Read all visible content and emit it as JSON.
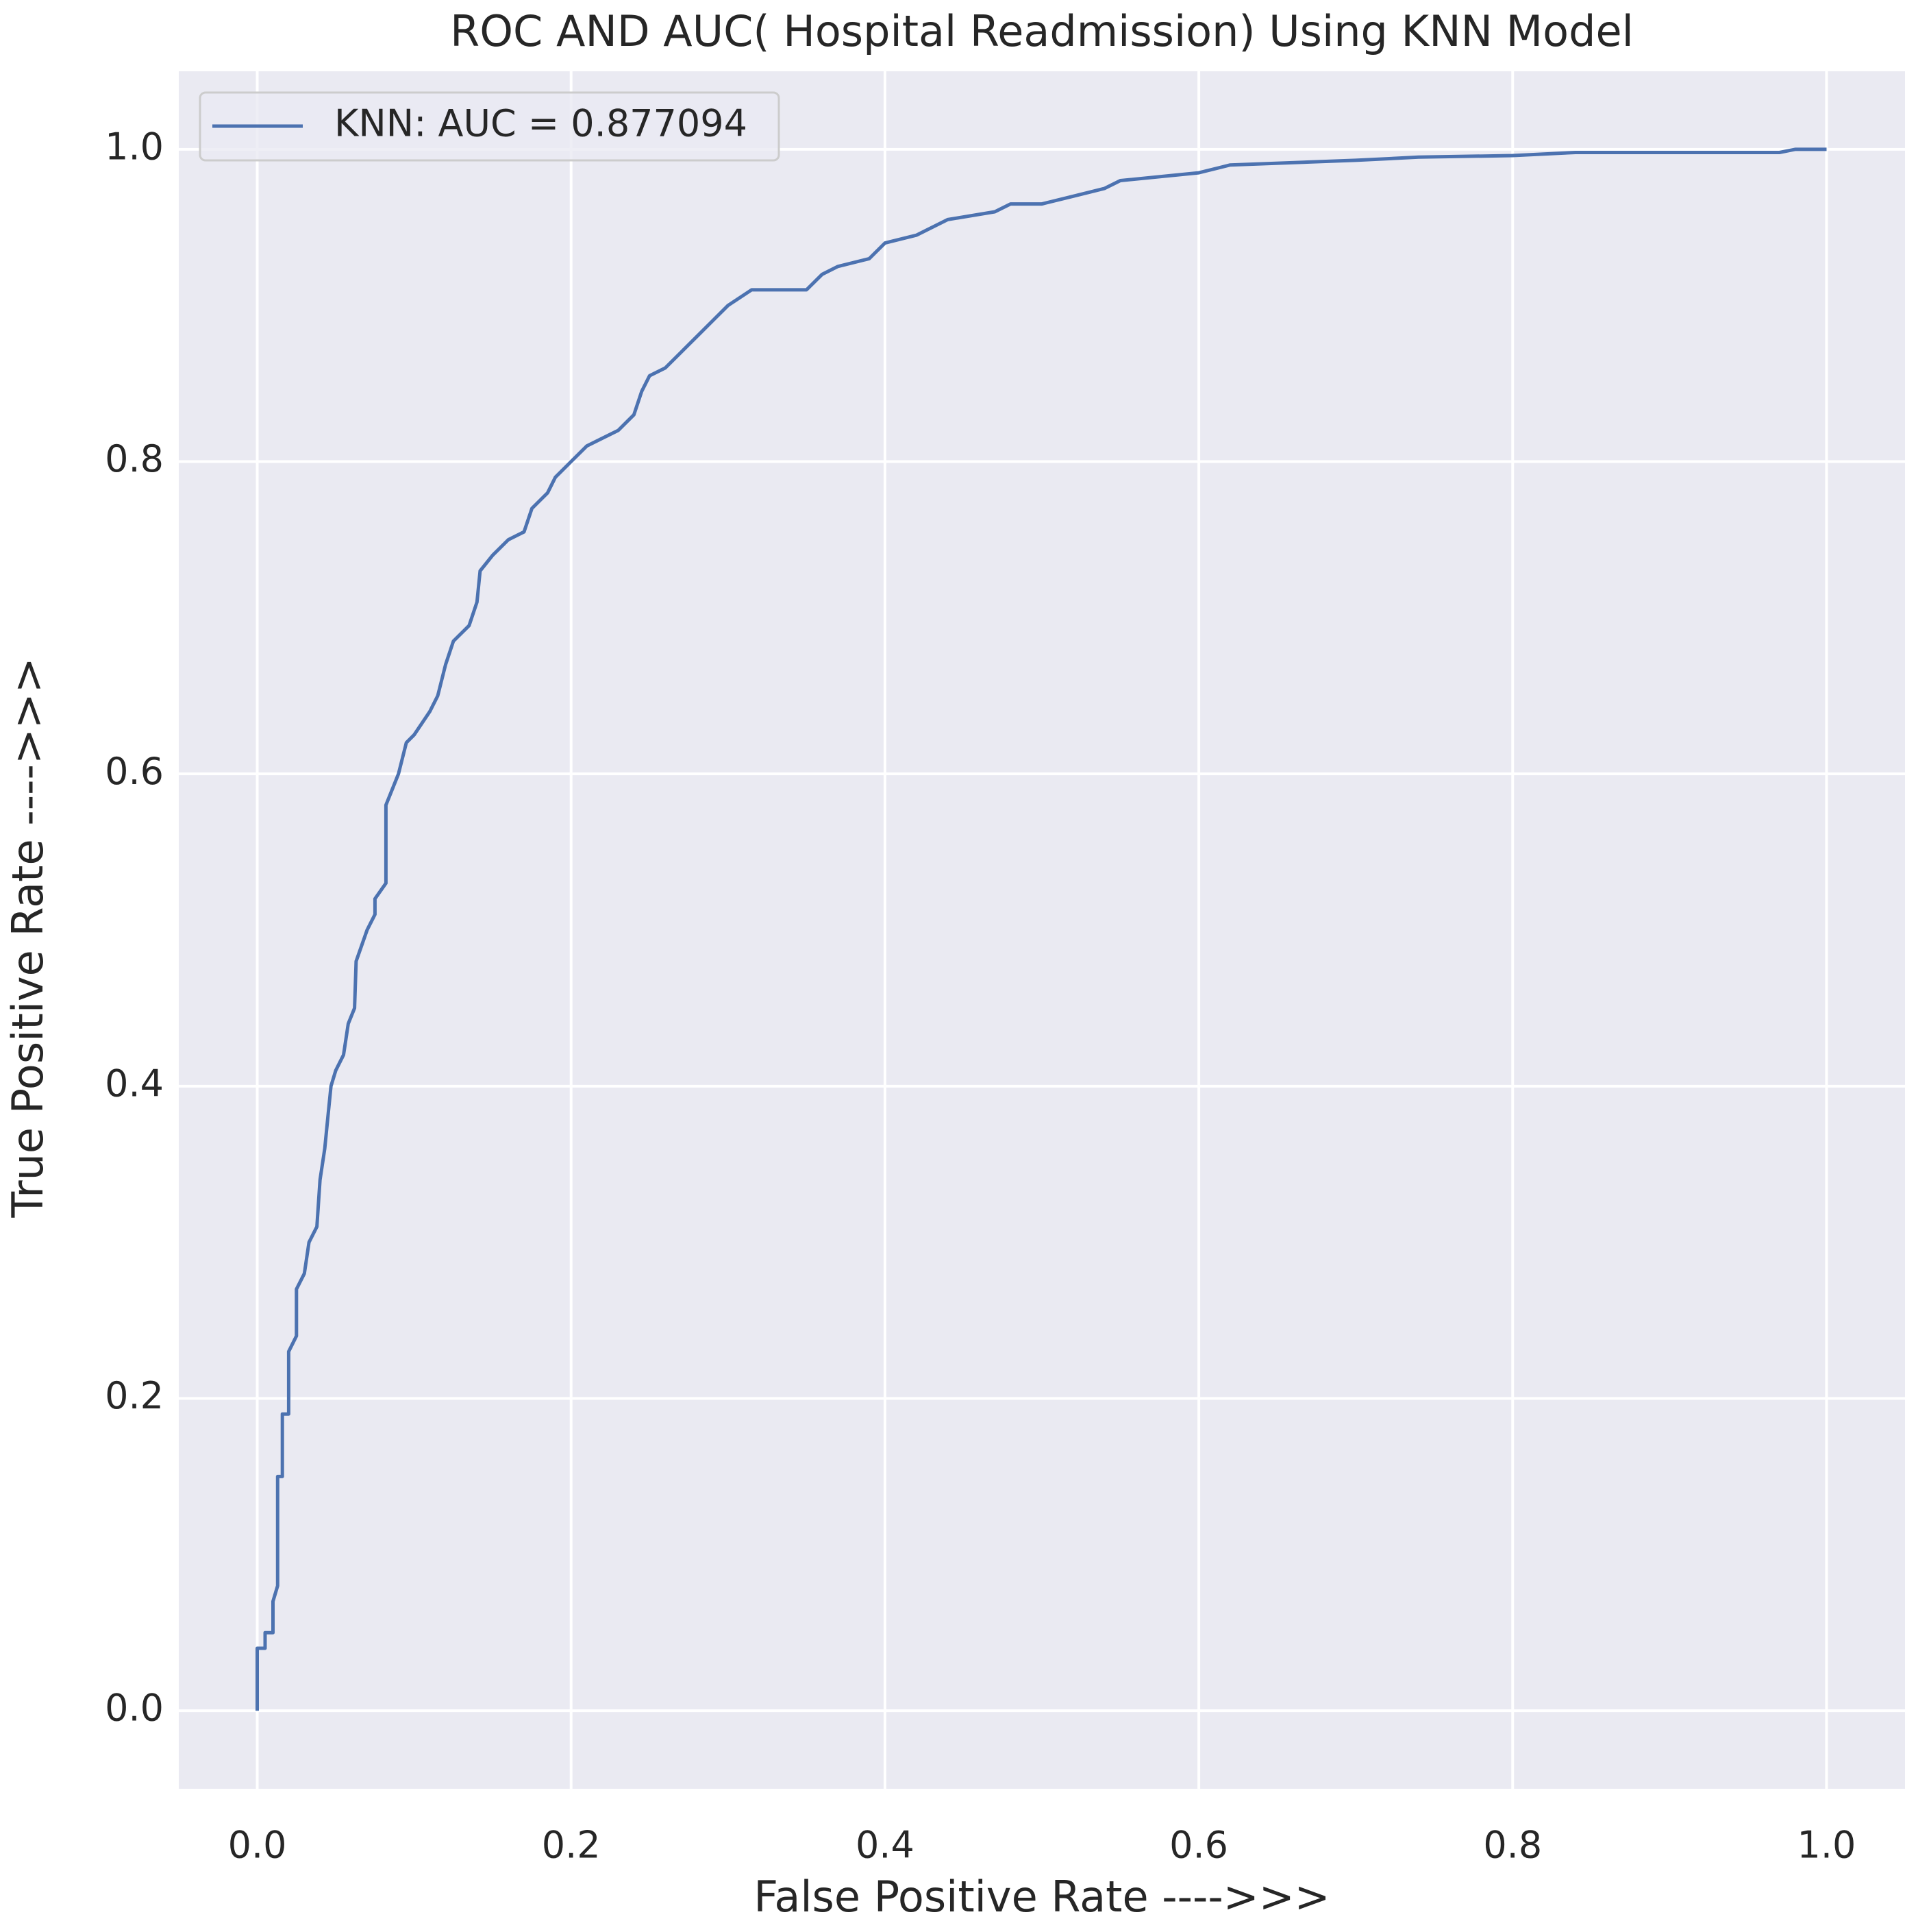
{
  "chart_data": {
    "type": "line",
    "title": "ROC AND AUC( Hospital Readmission) Using KNN Model",
    "x_label": "False Positive Rate ---->>>",
    "y_label": "True Positive Rate ---->>>",
    "x": [
      0,
      0,
      0.005,
      0.005,
      0.01,
      0.01,
      0.013,
      0.013,
      0.016,
      0.016,
      0.02,
      0.02,
      0.025,
      0.025,
      0.03,
      0.033,
      0.038,
      0.04,
      0.043,
      0.045,
      0.047,
      0.05,
      0.055,
      0.058,
      0.062,
      0.063,
      0.07,
      0.075,
      0.075,
      0.082,
      0.082,
      0.09,
      0.095,
      0.1,
      0.11,
      0.115,
      0.12,
      0.125,
      0.13,
      0.135,
      0.14,
      0.142,
      0.15,
      0.16,
      0.17,
      0.175,
      0.185,
      0.19,
      0.2,
      0.21,
      0.22,
      0.23,
      0.24,
      0.245,
      0.25,
      0.26,
      0.27,
      0.28,
      0.29,
      0.3,
      0.315,
      0.35,
      0.36,
      0.37,
      0.39,
      0.4,
      0.42,
      0.44,
      0.47,
      0.48,
      0.5,
      0.52,
      0.54,
      0.55,
      0.6,
      0.62,
      0.7,
      0.74,
      0.8,
      0.84,
      0.97,
      0.98,
      1.0
    ],
    "series": [
      {
        "name": "KNN: AUC = 0.877094",
        "color": "#4c72b0",
        "values": [
          0,
          0.04,
          0.04,
          0.05,
          0.05,
          0.07,
          0.08,
          0.15,
          0.15,
          0.19,
          0.19,
          0.23,
          0.24,
          0.27,
          0.28,
          0.3,
          0.31,
          0.34,
          0.36,
          0.38,
          0.4,
          0.41,
          0.42,
          0.44,
          0.45,
          0.48,
          0.5,
          0.51,
          0.52,
          0.53,
          0.58,
          0.6,
          0.62,
          0.625,
          0.64,
          0.65,
          0.67,
          0.685,
          0.69,
          0.695,
          0.71,
          0.73,
          0.74,
          0.75,
          0.755,
          0.77,
          0.78,
          0.79,
          0.8,
          0.81,
          0.815,
          0.82,
          0.83,
          0.845,
          0.855,
          0.86,
          0.87,
          0.88,
          0.89,
          0.9,
          0.91,
          0.91,
          0.92,
          0.925,
          0.93,
          0.94,
          0.945,
          0.955,
          0.96,
          0.965,
          0.965,
          0.97,
          0.975,
          0.98,
          0.985,
          0.99,
          0.993,
          0.995,
          0.996,
          0.998,
          0.998,
          1.0,
          1.0
        ]
      }
    ],
    "xlim": [
      -0.05,
      1.05
    ],
    "ylim": [
      -0.05,
      1.05
    ],
    "xticks": [
      {
        "value": 0,
        "label": "0.0"
      },
      0.2,
      0.4,
      0.6,
      0.8,
      {
        "value": 1,
        "label": "1.0"
      }
    ],
    "yticks": [
      {
        "value": 0,
        "label": "0.0"
      },
      0.2,
      0.4,
      0.6,
      0.8,
      {
        "value": 1,
        "label": "1.0"
      }
    ],
    "grid": true,
    "legend": "upper left"
  }
}
